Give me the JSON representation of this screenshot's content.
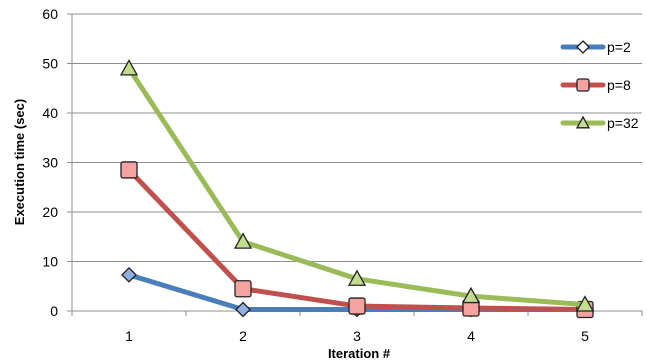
{
  "chart_data": {
    "type": "line",
    "title": "",
    "xlabel": "Iteration #",
    "ylabel": "Execution time (sec)",
    "x": [
      1,
      2,
      3,
      4,
      5
    ],
    "x_tick_labels": [
      "1",
      "2",
      "3",
      "4",
      "5"
    ],
    "ylim": [
      0,
      60
    ],
    "y_ticks": [
      0,
      10,
      20,
      30,
      40,
      50,
      60
    ],
    "grid": "horizontal",
    "legend_position": "right",
    "series": [
      {
        "name": "p=2",
        "marker": "diamond",
        "color": "#4A7EBB",
        "marker_fill": "#8FB0E0",
        "values": [
          7.3,
          0.3,
          0.3,
          0.3,
          0.3
        ]
      },
      {
        "name": "p=8",
        "marker": "square",
        "color": "#C0504D",
        "marker_fill": "#F4A3A1",
        "values": [
          28.5,
          4.5,
          1.0,
          0.6,
          0.3
        ]
      },
      {
        "name": "p=32",
        "marker": "triangle",
        "color": "#9BBB59",
        "marker_fill": "#C4DC8E",
        "values": [
          49.0,
          14.0,
          6.5,
          3.0,
          1.3
        ]
      }
    ]
  }
}
